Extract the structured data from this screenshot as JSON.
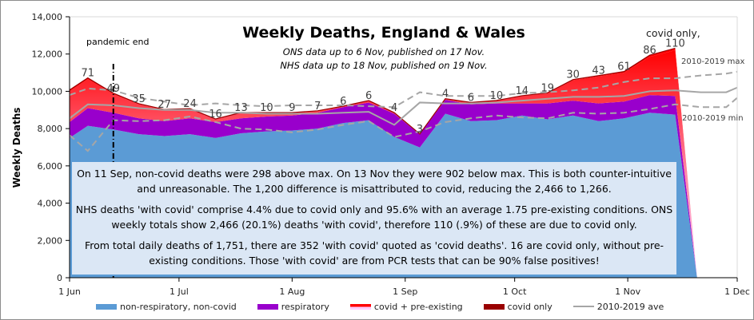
{
  "chart_data": {
    "type": "area",
    "title": "Weekly Deaths, England & Wales",
    "subtitles": [
      "ONS data up to 6 Nov, published on 17 Nov.",
      "NHS data up to 18 Nov, published on 19 Nov."
    ],
    "xlabel": "",
    "ylabel": "Weekly Deaths",
    "ylim": [
      0,
      14000
    ],
    "yticks": [
      0,
      2000,
      4000,
      6000,
      8000,
      10000,
      12000,
      14000
    ],
    "ytick_labels": [
      "0",
      "2,000",
      "4,000",
      "6,000",
      "8,000",
      "10,000",
      "12,000",
      "14,000"
    ],
    "xlim_days": [
      0,
      183
    ],
    "xticks_days": [
      0,
      30,
      61,
      92,
      122,
      153,
      183
    ],
    "xtick_labels": [
      "1 Jun",
      "1 Jul",
      "1 Aug",
      "1 Sep",
      "1 Oct",
      "1 Nov",
      "1 Dec"
    ],
    "x_days": [
      0,
      5,
      12,
      19,
      26,
      33,
      40,
      47,
      54,
      61,
      68,
      75,
      82,
      89,
      96,
      103,
      110,
      117,
      124,
      131,
      138,
      145,
      152,
      159,
      166,
      172
    ],
    "series": [
      {
        "name": "non-respiratory, non-covid",
        "color": "#5b9bd5",
        "kind": "stacked-area",
        "values": [
          7500,
          8150,
          7950,
          7700,
          7600,
          7700,
          7500,
          7750,
          7850,
          7900,
          8000,
          8300,
          8450,
          7550,
          6990,
          8800,
          8400,
          8450,
          8700,
          8500,
          8700,
          8400,
          8550,
          8850,
          8750,
          0
        ]
      },
      {
        "name": "respiratory",
        "color": "#9900cc",
        "kind": "stacked-area",
        "values": [
          850,
          950,
          900,
          850,
          800,
          850,
          850,
          800,
          800,
          800,
          850,
          850,
          950,
          1250,
          700,
          750,
          900,
          900,
          650,
          850,
          800,
          950,
          900,
          950,
          1000,
          0
        ]
      },
      {
        "name": "covid + pre-existing",
        "color": "#ff0000",
        "color2": "#ffccff",
        "kind": "stacked-area-gradient",
        "values": [
          1650,
          1550,
          1000,
          750,
          600,
          500,
          150,
          300,
          200,
          150,
          100,
          50,
          100,
          50,
          20,
          50,
          100,
          150,
          400,
          550,
          1100,
          1450,
          1550,
          2050,
          2450,
          0
        ]
      },
      {
        "name": "covid only",
        "color": "#990000",
        "kind": "stacked-area-top",
        "values": [
          71,
          71,
          49,
          35,
          27,
          24,
          16,
          13,
          10,
          9,
          7,
          6,
          6,
          4,
          3,
          4,
          6,
          10,
          14,
          19,
          30,
          43,
          61,
          86,
          110,
          0
        ]
      },
      {
        "name": "2010-2019 ave",
        "color": "#a6a6a6",
        "kind": "line",
        "x_days": [
          0,
          5,
          12,
          19,
          26,
          33,
          40,
          47,
          54,
          61,
          68,
          75,
          82,
          89,
          96,
          103,
          110,
          117,
          124,
          131,
          138,
          145,
          152,
          159,
          166,
          173,
          180,
          183
        ],
        "values": [
          8550,
          9300,
          9250,
          9100,
          9000,
          9000,
          8850,
          8850,
          8800,
          8800,
          8800,
          8850,
          8900,
          8200,
          9400,
          9350,
          9350,
          9400,
          9500,
          9600,
          9700,
          9700,
          9750,
          10000,
          10050,
          9950,
          9950,
          10200
        ]
      },
      {
        "name": "2010-2019 max",
        "color": "#a6a6a6",
        "kind": "dashed-line",
        "x_days": [
          0,
          5,
          12,
          19,
          26,
          33,
          40,
          47,
          54,
          61,
          68,
          75,
          82,
          89,
          96,
          103,
          110,
          117,
          124,
          131,
          138,
          145,
          152,
          159,
          166,
          173,
          180,
          183
        ],
        "values": [
          9800,
          10150,
          10050,
          9650,
          9450,
          9250,
          9350,
          9250,
          9200,
          9250,
          9250,
          9250,
          9200,
          9150,
          9950,
          9750,
          9750,
          9750,
          9900,
          9950,
          10050,
          10200,
          10500,
          10700,
          10700,
          10850,
          10950,
          11050
        ]
      },
      {
        "name": "2010-2019 min",
        "color": "#a6a6a6",
        "kind": "dashed-line",
        "x_days": [
          0,
          5,
          12,
          19,
          26,
          33,
          40,
          47,
          54,
          61,
          68,
          75,
          82,
          89,
          96,
          103,
          110,
          117,
          124,
          131,
          138,
          145,
          152,
          159,
          166,
          173,
          180,
          183
        ],
        "values": [
          7650,
          6800,
          8450,
          8400,
          8450,
          8650,
          8350,
          8000,
          7950,
          7800,
          7950,
          8200,
          8400,
          7550,
          7850,
          8350,
          8550,
          8700,
          8600,
          8550,
          8850,
          8800,
          8850,
          9050,
          9300,
          9150,
          9150,
          9650
        ]
      }
    ],
    "data_labels": {
      "series": "covid only",
      "values": [
        71,
        49,
        35,
        27,
        24,
        16,
        13,
        10,
        9,
        7,
        6,
        6,
        4,
        3,
        4,
        6,
        10,
        14,
        19,
        30,
        43,
        61,
        86,
        110
      ]
    },
    "annotations": {
      "pandemic_end": {
        "label": "pandemic end",
        "x_day": 12
      },
      "covid_only_label": "covid only,",
      "max_label": "2010-2019 max",
      "min_label": "2010-2019 min"
    },
    "legend": {
      "position": "bottom",
      "items": [
        {
          "label": "non-respiratory, non-covid",
          "color": "#5b9bd5",
          "type": "swatch"
        },
        {
          "label": "respiratory",
          "color": "#9900cc",
          "type": "swatch"
        },
        {
          "label": "covid + pre-existing",
          "color": "#ff0000",
          "color2": "#ffccff",
          "type": "swatch-gradient"
        },
        {
          "label": "covid only",
          "color": "#990000",
          "type": "swatch"
        },
        {
          "label": "2010-2019 ave",
          "color": "#a6a6a6",
          "type": "line"
        }
      ]
    },
    "grid": false
  },
  "textbox": {
    "paragraphs": [
      "On 11 Sep, non-covid deaths were 298 above max. On 13 Nov they were 902 below max. This is both counter-intuitive and unreasonable. The 1,200 difference is misattributed to covid, reducing the 2,466 to 1,266.",
      "NHS deaths 'with covid' comprise 4.4% due to covid only and 95.6% with an average 1.75 pre-existing conditions. ONS weekly totals show 2,466 (20.1%) deaths 'with covid', therefore 110 (.9%) of these are due to covid only.",
      "From total daily deaths of 1,751, there are 352 'with covid' quoted as 'covid deaths'. 16 are covid only, without pre-existing conditions. Those 'with covid' are from PCR tests that can be 90% false positives!"
    ]
  }
}
